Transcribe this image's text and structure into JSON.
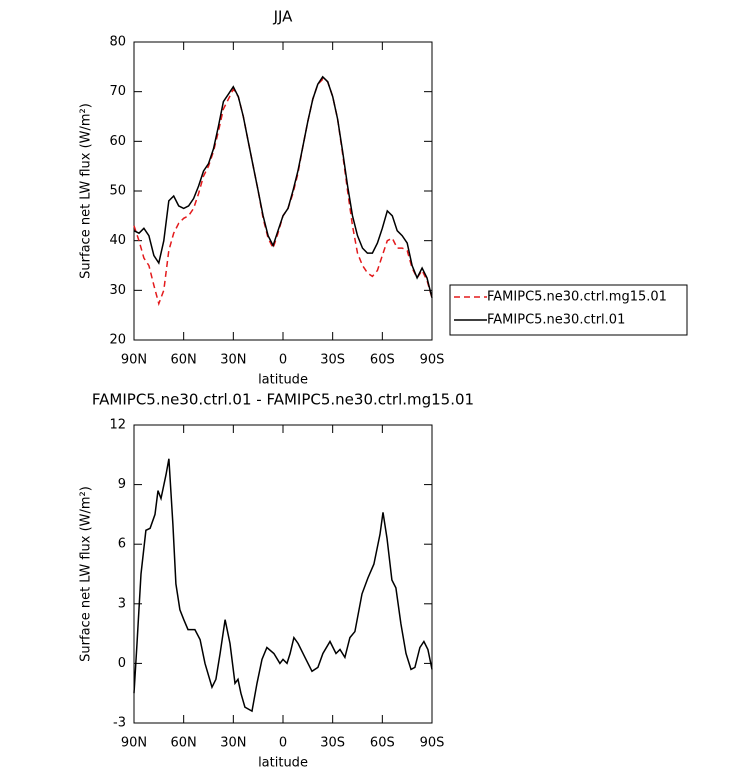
{
  "chart_data": [
    {
      "type": "line",
      "title": "JJA",
      "xlabel": "latitude",
      "ylabel": "Surface net LW flux (W/m²)",
      "xlim": [
        90,
        -90
      ],
      "xticks": [
        {
          "value": 90,
          "label": "90N"
        },
        {
          "value": 60,
          "label": "60N"
        },
        {
          "value": 30,
          "label": "30N"
        },
        0,
        {
          "value": -30,
          "label": "30S"
        },
        {
          "value": -60,
          "label": "60S"
        },
        {
          "value": -90,
          "label": "90S"
        }
      ],
      "ylim": [
        20,
        80
      ],
      "yticks": [
        20,
        30,
        40,
        50,
        60,
        70,
        80
      ],
      "legend": "right",
      "x": [
        90,
        87,
        84,
        81,
        78,
        75,
        72,
        69,
        66,
        63,
        60,
        57,
        54,
        51,
        48,
        45,
        42,
        39,
        36,
        33,
        30,
        27,
        24,
        21,
        18,
        15,
        12,
        9,
        6,
        3,
        0,
        -3,
        -6,
        -9,
        -12,
        -15,
        -18,
        -21,
        -24,
        -27,
        -30,
        -33,
        -36,
        -39,
        -42,
        -45,
        -48,
        -51,
        -54,
        -57,
        -60,
        -63,
        -66,
        -69,
        -72,
        -75,
        -78,
        -81,
        -84,
        -87,
        -90
      ],
      "series": [
        {
          "name": "FAMIPC5.ne30.ctrl.mg15.01",
          "color": "#e31a1c",
          "linestyle": "dashed",
          "values": [
            43,
            40,
            36.5,
            35,
            31,
            27.3,
            30,
            38,
            41.5,
            43.5,
            44.5,
            45,
            46.5,
            49.5,
            53,
            55,
            58,
            62,
            66.5,
            68.5,
            70.5,
            69,
            65,
            60,
            55,
            50,
            44.5,
            40.5,
            38.5,
            41.5,
            45,
            46.5,
            49.5,
            53.5,
            59,
            64,
            68.5,
            71.5,
            72.5,
            72,
            69,
            64.5,
            57.5,
            50,
            43,
            37.5,
            35,
            33.5,
            32.8,
            34,
            37,
            40,
            40.5,
            38.5,
            38.5,
            38,
            34.5,
            32.5,
            34,
            32,
            28.5
          ]
        },
        {
          "name": "FAMIPC5.ne30.ctrl.01",
          "color": "#000000",
          "linestyle": "solid",
          "values": [
            42,
            41.5,
            42.5,
            41,
            37,
            35.5,
            40,
            48,
            49,
            47,
            46.5,
            47,
            48.5,
            51,
            54,
            55.5,
            58.5,
            63,
            68,
            69.5,
            71,
            69,
            65,
            60,
            55,
            50,
            45,
            41,
            39,
            42,
            45,
            46.5,
            50,
            54,
            59,
            64,
            68.5,
            71.5,
            73,
            72,
            69,
            64.5,
            58,
            51,
            45,
            41,
            38.5,
            37.5,
            37.5,
            39.5,
            42.5,
            46,
            45,
            42,
            41,
            39.5,
            35,
            32.5,
            34.5,
            32.5,
            28.5
          ]
        }
      ]
    },
    {
      "type": "line",
      "title": "FAMIPC5.ne30.ctrl.01 - FAMIPC5.ne30.ctrl.mg15.01",
      "xlabel": "latitude",
      "ylabel": "Surface net LW flux (W/m²)",
      "xlim": [
        90,
        -90
      ],
      "xticks": [
        {
          "value": 90,
          "label": "90N"
        },
        {
          "value": 60,
          "label": "60N"
        },
        {
          "value": 30,
          "label": "30N"
        },
        0,
        {
          "value": -30,
          "label": "30S"
        },
        {
          "value": -60,
          "label": "60S"
        },
        {
          "value": -90,
          "label": "90S"
        }
      ],
      "ylim": [
        -3,
        12
      ],
      "yticks": [
        -3,
        0,
        3,
        6,
        9,
        12
      ],
      "color": "#000000",
      "x": [
        90,
        88.2,
        85.8,
        82.8,
        80.3,
        77.3,
        75.5,
        73.7,
        70.7,
        68.9,
        66.5,
        64.7,
        62.3,
        59.9,
        57.4,
        53.2,
        50.1,
        47.1,
        42.9,
        40.5,
        38,
        35,
        32,
        29,
        27.2,
        25.4,
        23,
        18.7,
        15.7,
        12.7,
        9.7,
        5.5,
        1.9,
        0,
        -2.4,
        -4.3,
        -6.6,
        -9.1,
        -13.3,
        -17.5,
        -21.1,
        -24.1,
        -28.4,
        -32,
        -34.4,
        -37.4,
        -40.4,
        -43.4,
        -47.7,
        -51.3,
        -54.9,
        -58.6,
        -60.4,
        -62.8,
        -65.8,
        -68.2,
        -71.2,
        -74.3,
        -77.3,
        -79.7,
        -82.7,
        -85.1,
        -87.5,
        -90
      ],
      "values": [
        -1.5,
        1,
        4.5,
        6.7,
        6.8,
        7.5,
        8.7,
        8.3,
        9.5,
        10.3,
        7,
        4,
        2.7,
        2.2,
        1.7,
        1.7,
        1.2,
        0,
        -1.2,
        -0.8,
        0.5,
        2.2,
        1,
        -1,
        -0.8,
        -1.5,
        -2.2,
        -2.4,
        -1,
        0.2,
        0.8,
        0.5,
        0,
        0.2,
        0,
        0.5,
        1.3,
        1,
        0.3,
        -0.4,
        -0.2,
        0.5,
        1.1,
        0.5,
        0.7,
        0.3,
        1.3,
        1.6,
        3.5,
        4.3,
        5,
        6.5,
        7.6,
        6.3,
        4.2,
        3.8,
        2,
        0.5,
        -0.3,
        -0.2,
        0.8,
        1.1,
        0.7,
        -0.3
      ]
    }
  ]
}
